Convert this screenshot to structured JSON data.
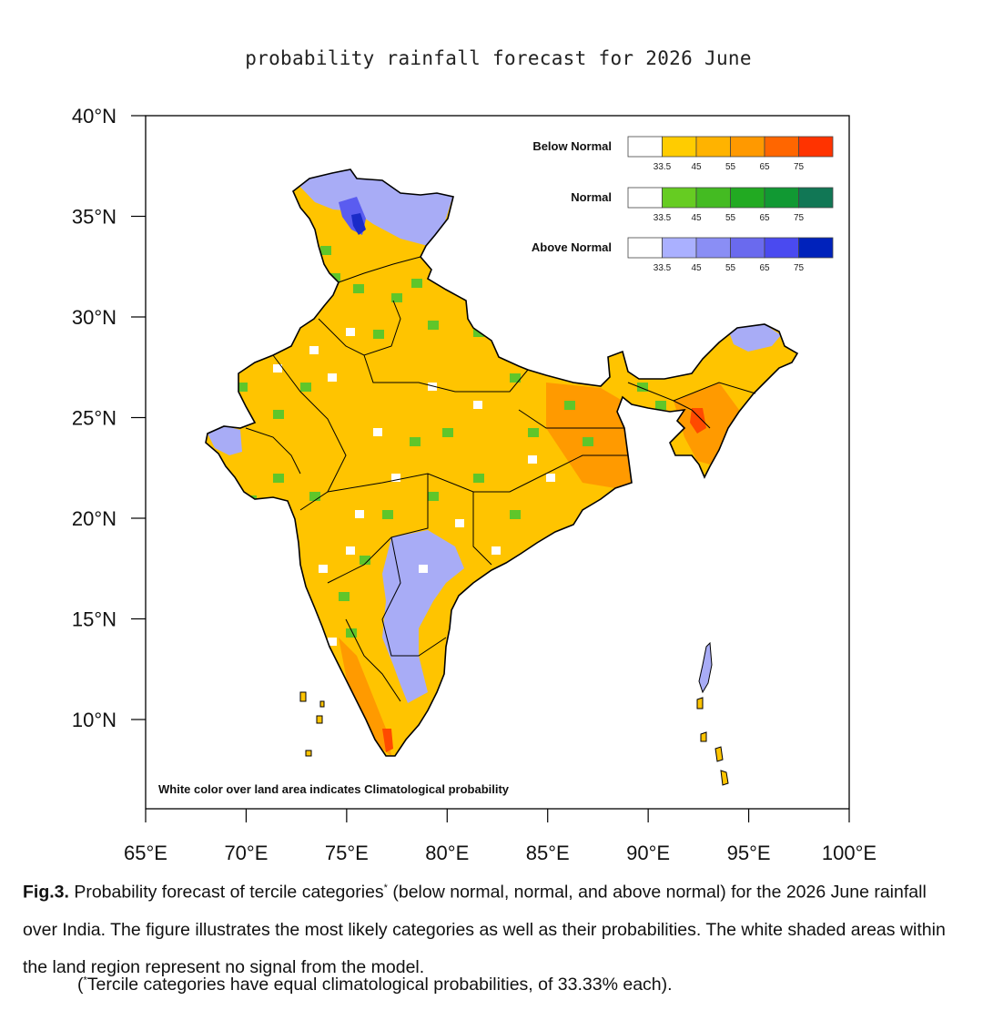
{
  "title": "probability rainfall forecast for 2026 June",
  "axes": {
    "lat_labels": [
      "40°N",
      "35°N",
      "30°N",
      "25°N",
      "20°N",
      "15°N",
      "10°N"
    ],
    "lat_values": [
      40,
      35,
      30,
      25,
      20,
      15,
      10
    ],
    "lon_labels": [
      "65°E",
      "70°E",
      "75°E",
      "80°E",
      "85°E",
      "90°E",
      "95°E",
      "100°E"
    ],
    "lon_values": [
      65,
      70,
      75,
      80,
      85,
      90,
      95,
      100
    ],
    "lat_range": [
      5.5,
      40
    ],
    "lon_range": [
      65,
      100
    ]
  },
  "legend": {
    "ticks": [
      "33.5",
      "45",
      "55",
      "65",
      "75"
    ],
    "categories": [
      {
        "name": "Below Normal",
        "colors": [
          "#ffffff",
          "#ffcc00",
          "#ffb300",
          "#ff9900",
          "#ff6600",
          "#ff3300"
        ]
      },
      {
        "name": "Normal",
        "colors": [
          "#ffffff",
          "#66cc22",
          "#44bb22",
          "#22aa22",
          "#119933",
          "#117755"
        ]
      },
      {
        "name": "Above Normal",
        "colors": [
          "#ffffff",
          "#aab0ff",
          "#8a8ef5",
          "#6a6aee",
          "#4a4af0",
          "#0022bb"
        ]
      }
    ]
  },
  "note": "White color over land area indicates Climatological probability",
  "caption": {
    "label": "Fig.3.",
    "text_before_star": " Probability forecast of tercile categories",
    "star": "*",
    "text_after_star": " (below normal, normal, and above normal) for the 2026 June rainfall over India. The figure illustrates the most likely categories as well as their probabilities. The white shaded areas within the land region represent no signal from the model.",
    "footnote_star": "*",
    "footnote": "Tercile categories have equal climatological probabilities, of 33.33% each)."
  },
  "footnote_open": "(",
  "map_colors": {
    "dominant": "#ffc400",
    "below_strong": "#ff9a00",
    "below_very_strong": "#ff4a00",
    "normal": "#5fc62a",
    "above": "#a8acf6",
    "above_strong": "#5a5cf0",
    "above_very_strong": "#1a2bc8",
    "no_signal": "#ffffff"
  }
}
